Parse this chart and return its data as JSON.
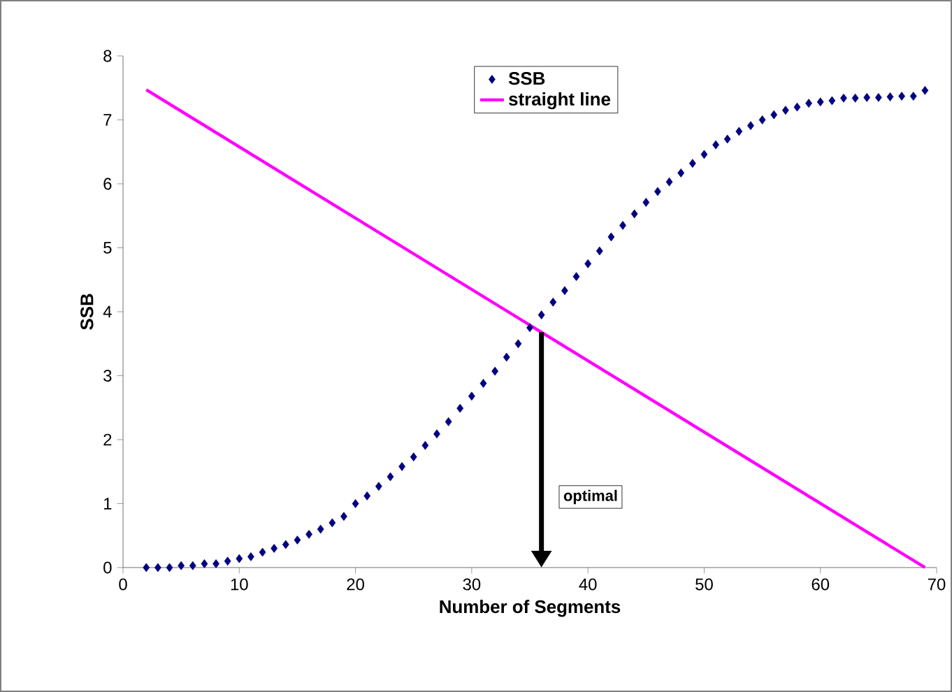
{
  "chart_data": {
    "type": "scatter",
    "xlabel": "Number of Segments",
    "ylabel": "SSB",
    "xlim": [
      0,
      70
    ],
    "ylim": [
      0,
      8
    ],
    "xticks": [
      0,
      10,
      20,
      30,
      40,
      50,
      60,
      70
    ],
    "yticks": [
      0,
      1,
      2,
      3,
      4,
      5,
      6,
      7,
      8
    ],
    "grid": false,
    "legend": "top",
    "series": [
      {
        "name": "SSB",
        "color": "#000080",
        "marker": "diamond",
        "x": [
          2,
          3,
          4,
          5,
          6,
          7,
          8,
          9,
          10,
          11,
          12,
          13,
          14,
          15,
          16,
          17,
          18,
          19,
          20,
          21,
          22,
          23,
          24,
          25,
          26,
          27,
          28,
          29,
          30,
          31,
          32,
          33,
          34,
          35,
          36,
          37,
          38,
          39,
          40,
          41,
          42,
          43,
          44,
          45,
          46,
          47,
          48,
          49,
          50,
          51,
          52,
          53,
          54,
          55,
          56,
          57,
          58,
          59,
          60,
          61,
          62,
          63,
          64,
          65,
          66,
          67,
          68,
          69
        ],
        "values": [
          0,
          0,
          0,
          0.03,
          0.03,
          0.06,
          0.06,
          0.1,
          0.14,
          0.17,
          0.24,
          0.3,
          0.36,
          0.43,
          0.52,
          0.6,
          0.7,
          0.8,
          1.0,
          1.12,
          1.27,
          1.42,
          1.58,
          1.73,
          1.91,
          2.09,
          2.28,
          2.49,
          2.68,
          2.88,
          3.07,
          3.29,
          3.5,
          3.75,
          3.95,
          4.15,
          4.33,
          4.55,
          4.75,
          4.95,
          5.17,
          5.35,
          5.53,
          5.71,
          5.88,
          6.03,
          6.17,
          6.32,
          6.46,
          6.61,
          6.7,
          6.82,
          6.91,
          7.0,
          7.08,
          7.15,
          7.2,
          7.26,
          7.28,
          7.3,
          7.34,
          7.34,
          7.35,
          7.35,
          7.36,
          7.37,
          7.37,
          7.46
        ]
      },
      {
        "name": "straight line",
        "type": "line",
        "color": "#ff00ff",
        "marker": "none",
        "line_style": "solid",
        "x": [
          2,
          69
        ],
        "values": [
          7.47,
          0
        ]
      }
    ],
    "annotations": [
      "optimal"
    ]
  }
}
